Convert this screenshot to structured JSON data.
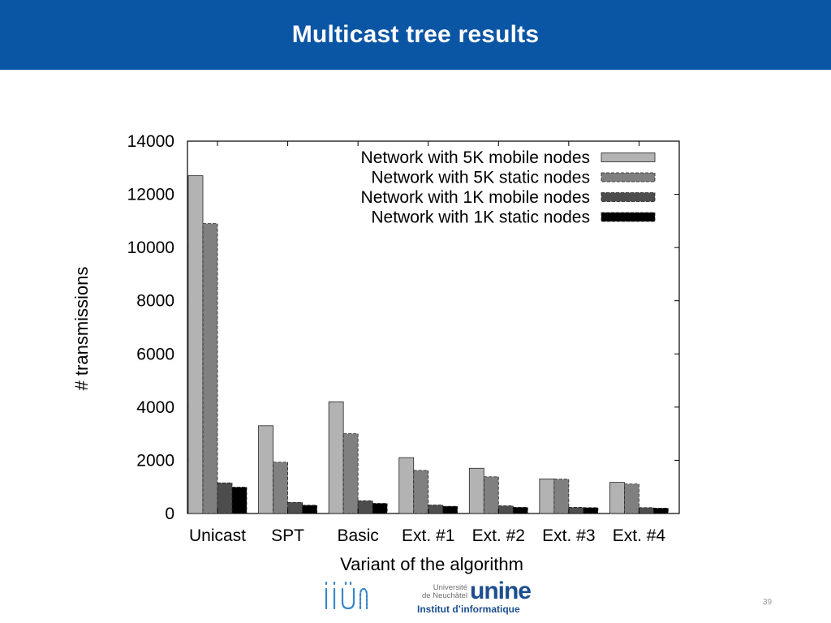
{
  "slide": {
    "title": "Multicast tree results",
    "page_number": "39"
  },
  "footer": {
    "logo_iiun_text": "iiUN",
    "unine_line1": "Université",
    "unine_line2": "de Neuchâtel",
    "unine_brand": "unine",
    "unine_institute": "Institut d’informatique"
  },
  "chart_data": {
    "type": "bar",
    "title": "",
    "xlabel": "Variant of the algorithm",
    "ylabel": "# transmissions",
    "ylim": [
      0,
      14000
    ],
    "yticks": [
      0,
      2000,
      4000,
      6000,
      8000,
      10000,
      12000,
      14000
    ],
    "categories": [
      "Unicast",
      "SPT",
      "Basic",
      "Ext. #1",
      "Ext. #2",
      "Ext. #3",
      "Ext. #4"
    ],
    "legend_position": "top-right",
    "grid": false,
    "series": [
      {
        "name": "Network with 5K mobile nodes",
        "color": "#b3b3b3",
        "values": [
          12700,
          3300,
          4200,
          2100,
          1700,
          1300,
          1170
        ]
      },
      {
        "name": "Network with 5K static nodes",
        "color": "#808080",
        "values": [
          10900,
          1930,
          3000,
          1620,
          1380,
          1290,
          1110
        ]
      },
      {
        "name": "Network with 1K mobile nodes",
        "color": "#4d4d4d",
        "values": [
          1150,
          420,
          480,
          320,
          290,
          230,
          220
        ]
      },
      {
        "name": "Network with 1K static nodes",
        "color": "#000000",
        "values": [
          990,
          310,
          380,
          270,
          230,
          220,
          200
        ]
      }
    ]
  }
}
